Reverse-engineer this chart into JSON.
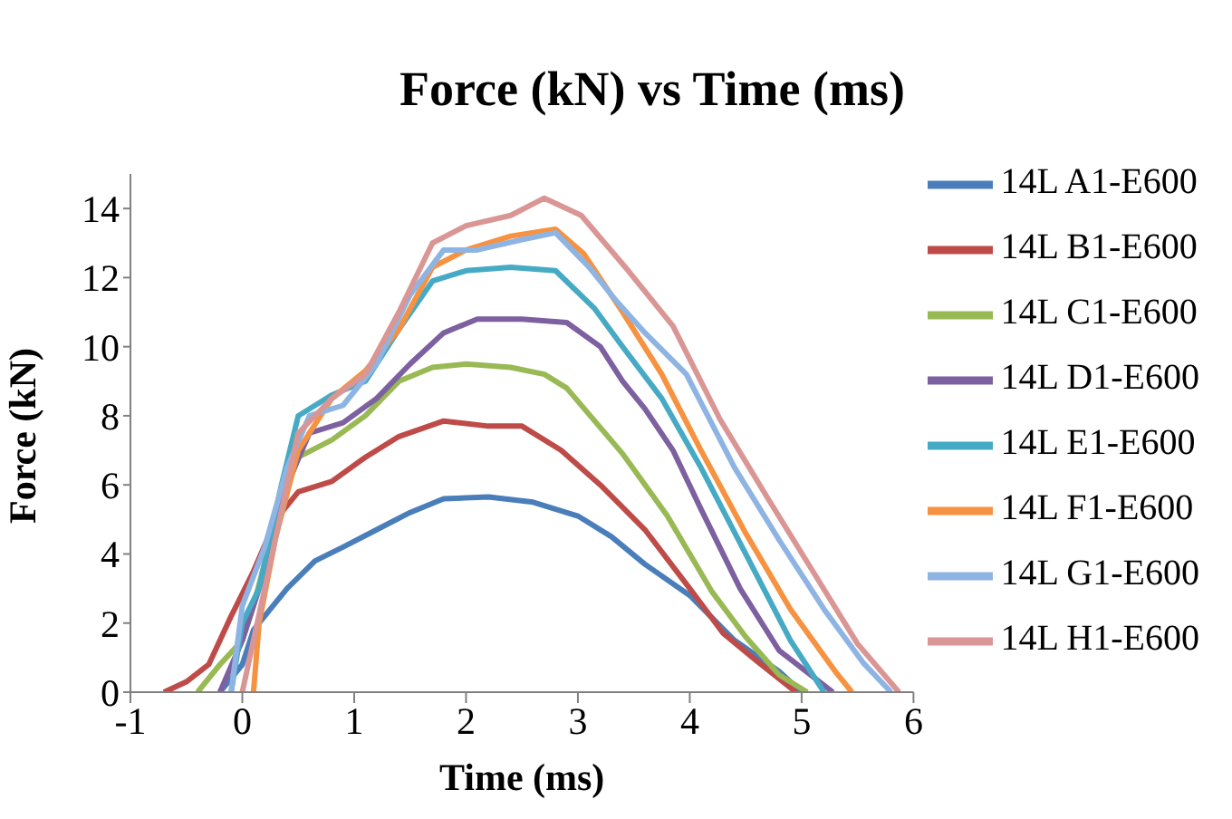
{
  "chart_data": {
    "type": "line",
    "title": "Force (kN) vs Time (ms)",
    "xlabel": "Time (ms)",
    "ylabel": "Force (kN)",
    "xlim": [
      -1,
      6
    ],
    "xticks": [
      -1,
      0,
      1,
      2,
      3,
      4,
      5,
      6
    ],
    "ylim": [
      0,
      15
    ],
    "yticks": [
      0,
      2,
      4,
      6,
      8,
      10,
      12,
      14
    ],
    "grid": false,
    "legend": "right",
    "marker": "none",
    "line_style": "solid",
    "series": [
      {
        "name": "14L A1-E600",
        "color": "#4a7ebb",
        "x": [
          -0.2,
          0,
          0.1,
          0.25,
          0.4,
          0.65,
          0.9,
          1.2,
          1.5,
          1.8,
          2.2,
          2.6,
          3.0,
          3.3,
          3.6,
          4.0,
          4.4,
          4.8,
          5.0
        ],
        "values": [
          0,
          0.8,
          1.8,
          2.4,
          3.0,
          3.8,
          4.2,
          4.7,
          5.2,
          5.6,
          5.65,
          5.5,
          5.1,
          4.5,
          3.7,
          2.8,
          1.5,
          0.6,
          0
        ]
      },
      {
        "name": "14L B1-E600",
        "color": "#be4b48",
        "x": [
          -0.7,
          -0.5,
          -0.3,
          -0.1,
          0.1,
          0.3,
          0.5,
          0.8,
          1.1,
          1.4,
          1.8,
          2.2,
          2.5,
          2.85,
          3.2,
          3.6,
          4.0,
          4.3,
          4.6,
          4.95
        ],
        "values": [
          0,
          0.3,
          0.8,
          2.2,
          3.5,
          5.0,
          5.8,
          6.1,
          6.8,
          7.4,
          7.85,
          7.7,
          7.7,
          7.0,
          6.0,
          4.7,
          3.0,
          1.7,
          0.9,
          0
        ]
      },
      {
        "name": "14L C1-E600",
        "color": "#98b954",
        "x": [
          -0.4,
          -0.2,
          0,
          0.1,
          0.3,
          0.5,
          0.8,
          1.1,
          1.4,
          1.7,
          2.0,
          2.4,
          2.7,
          2.9,
          3.4,
          3.8,
          4.2,
          4.5,
          4.8,
          5.05
        ],
        "values": [
          0,
          0.8,
          1.5,
          2.5,
          5.0,
          6.8,
          7.3,
          8.0,
          9.0,
          9.4,
          9.5,
          9.4,
          9.2,
          8.8,
          6.9,
          5.1,
          2.9,
          1.6,
          0.5,
          0
        ]
      },
      {
        "name": "14L D1-E600",
        "color": "#7d60a0",
        "x": [
          -0.2,
          0,
          0.2,
          0.4,
          0.6,
          0.9,
          1.2,
          1.5,
          1.8,
          2.1,
          2.5,
          2.9,
          3.2,
          3.4,
          3.6,
          3.85,
          4.1,
          4.45,
          4.8,
          5.28
        ],
        "values": [
          0,
          1.5,
          3.5,
          6.0,
          7.5,
          7.8,
          8.5,
          9.5,
          10.4,
          10.8,
          10.8,
          10.7,
          10.0,
          9.0,
          8.2,
          7.0,
          5.3,
          3.0,
          1.2,
          0
        ]
      },
      {
        "name": "14L E1-E600",
        "color": "#46aac5",
        "x": [
          -0.1,
          0,
          0.15,
          0.35,
          0.5,
          0.8,
          1.1,
          1.4,
          1.7,
          2.0,
          2.4,
          2.8,
          3.15,
          3.4,
          3.75,
          4.1,
          4.5,
          4.9,
          5.2
        ],
        "values": [
          0,
          2.0,
          3.0,
          6.0,
          8.0,
          8.6,
          9.0,
          10.5,
          11.9,
          12.2,
          12.3,
          12.2,
          11.1,
          10.0,
          8.5,
          6.5,
          4.0,
          1.5,
          0
        ]
      },
      {
        "name": "14L F1-E600",
        "color": "#f69240",
        "x": [
          0.1,
          0.15,
          0.3,
          0.5,
          0.8,
          1.1,
          1.4,
          1.7,
          2.0,
          2.4,
          2.8,
          3.05,
          3.4,
          3.75,
          4.1,
          4.5,
          4.9,
          5.3,
          5.45
        ],
        "values": [
          0,
          2.0,
          4.5,
          7.0,
          8.5,
          9.3,
          10.5,
          12.3,
          12.8,
          13.2,
          13.4,
          12.7,
          11.0,
          9.2,
          7.0,
          4.6,
          2.4,
          0.6,
          0
        ]
      },
      {
        "name": "14L G1-E600",
        "color": "#8eb4e3",
        "x": [
          -0.1,
          0,
          0.2,
          0.4,
          0.6,
          0.9,
          1.2,
          1.5,
          1.8,
          2.1,
          2.5,
          2.8,
          3.1,
          3.35,
          3.6,
          3.97,
          4.4,
          4.8,
          5.2,
          5.55,
          5.8
        ],
        "values": [
          0,
          2.5,
          4.2,
          6.5,
          8.0,
          8.3,
          9.5,
          11.5,
          12.8,
          12.8,
          13.1,
          13.3,
          12.3,
          11.3,
          10.4,
          9.2,
          6.5,
          4.4,
          2.4,
          0.85,
          0
        ]
      },
      {
        "name": "14L H1-E600",
        "color": "#d99694",
        "x": [
          0,
          0.1,
          0.3,
          0.5,
          0.8,
          1.1,
          1.4,
          1.7,
          2.0,
          2.4,
          2.7,
          3.03,
          3.45,
          3.85,
          4.27,
          4.7,
          5.1,
          5.5,
          5.87
        ],
        "values": [
          0,
          1.5,
          4.5,
          7.5,
          8.5,
          9.2,
          11.0,
          13.0,
          13.5,
          13.8,
          14.3,
          13.8,
          12.2,
          10.6,
          7.9,
          5.6,
          3.5,
          1.4,
          0
        ]
      }
    ]
  }
}
